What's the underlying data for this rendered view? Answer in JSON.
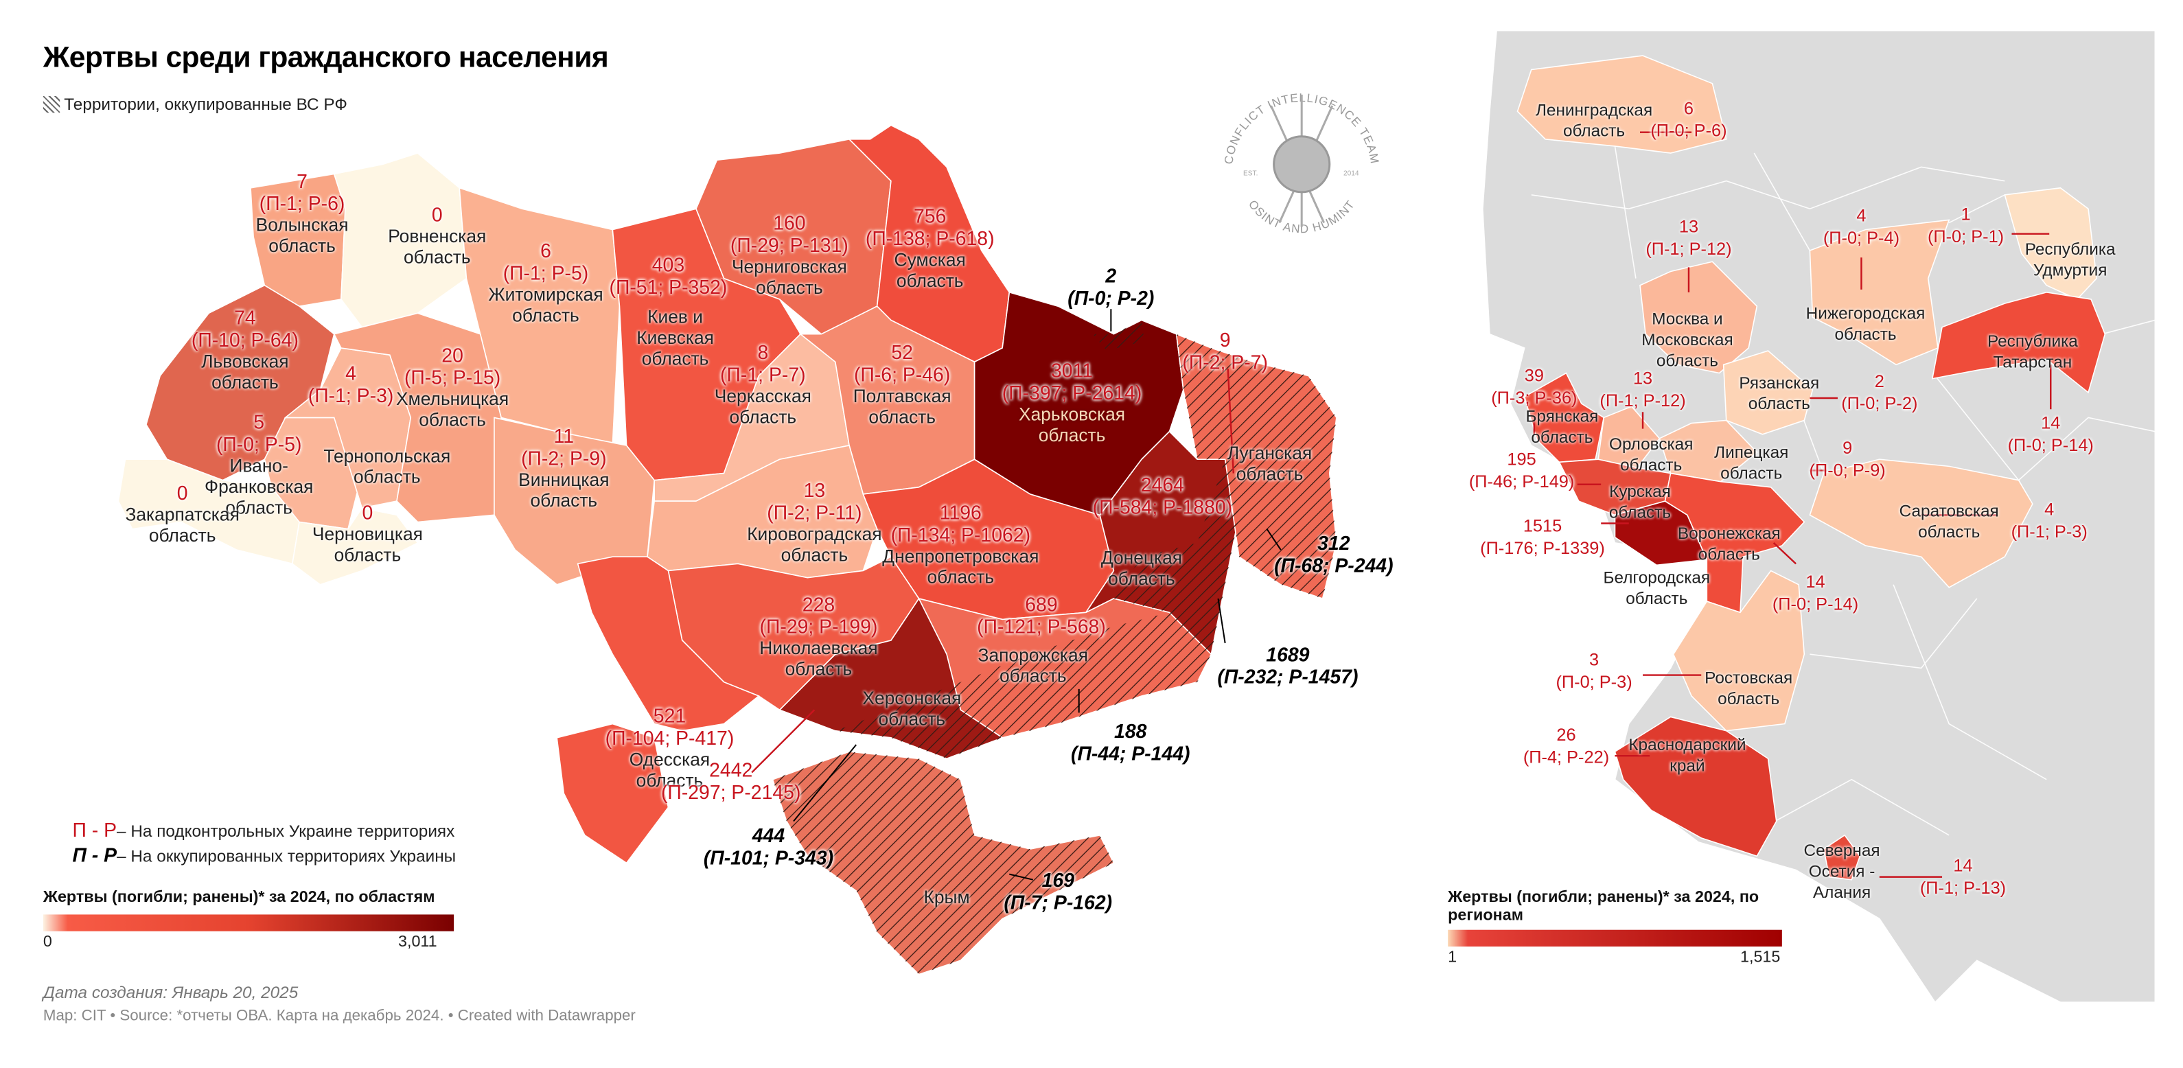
{
  "header": {
    "title": "Жертвы среди гражданского населения",
    "subtitle": "Территории, оккупированные ВС РФ"
  },
  "logo": {
    "top_text": "CONFLICT INTELLIGENCE TEAM",
    "est": "EST.",
    "year": "2014",
    "bottom_text": "OSINT AND HUMINT"
  },
  "colors": {
    "label_controlled": "#c8141e",
    "label_occupied": "#000000",
    "scale_ukraine": [
      "#fdf3e3",
      "#f75b46",
      "#e5432f",
      "#7a0000"
    ],
    "scale_russia": [
      "#fcd9b6",
      "#e8433a",
      "#a00000"
    ],
    "russia_background": "#dcdcdc"
  },
  "legend": {
    "controlled_code": "П - Р",
    "controlled_text": "– На подконтрольных Украине территориях",
    "occupied_code": "П - Р",
    "occupied_text": "– На оккупированных территориях Украины"
  },
  "ukraine_scale": {
    "title": "Жертвы (погибли; ранены)* за 2024, по областям",
    "min": "0",
    "max": "3,011"
  },
  "russia_scale": {
    "title_line1": "Жертвы (погибли; ранены)* за 2024, по",
    "title_line2": "регионам",
    "min": "1",
    "max": "1,515"
  },
  "ukraine": [
    {
      "name": [
        "Волынская",
        "область"
      ],
      "value": "7",
      "breakdown": "(П-1; Р-6)"
    },
    {
      "name": [
        "Ровненская",
        "область"
      ],
      "value": "0",
      "breakdown": ""
    },
    {
      "name": [
        "Житомирская",
        "область"
      ],
      "value": "6",
      "breakdown": "(П-1; Р-5)"
    },
    {
      "name": [
        "Киев и",
        "Киевская",
        "область"
      ],
      "value": "403",
      "breakdown": "(П-51; Р-352)"
    },
    {
      "name": [
        "Черниговская",
        "область"
      ],
      "value": "160",
      "breakdown": "(П-29; Р-131)"
    },
    {
      "name": [
        "Сумская",
        "область"
      ],
      "value": "756",
      "breakdown": "(П-138; Р-618)"
    },
    {
      "name": [
        "Львовская",
        "область"
      ],
      "value": "74",
      "breakdown": "(П-10; Р-64)"
    },
    {
      "name": [
        "Тернопольская",
        "область"
      ],
      "value": "4",
      "breakdown": "(П-1; Р-3)"
    },
    {
      "name": [
        "Хмельницкая",
        "область"
      ],
      "value": "20",
      "breakdown": "(П-5; Р-15)"
    },
    {
      "name": [
        "Ивано-",
        "Франковская",
        "область"
      ],
      "value": "5",
      "breakdown": "(П-0; Р-5)"
    },
    {
      "name": [
        "Закарпатская",
        "область"
      ],
      "value": "0",
      "breakdown": ""
    },
    {
      "name": [
        "Черновицкая",
        "область"
      ],
      "value": "0",
      "breakdown": ""
    },
    {
      "name": [
        "Винницкая",
        "область"
      ],
      "value": "11",
      "breakdown": "(П-2; Р-9)"
    },
    {
      "name": [
        "Черкасская",
        "область"
      ],
      "value": "8",
      "breakdown": "(П-1; Р-7)"
    },
    {
      "name": [
        "Полтавская",
        "область"
      ],
      "value": "52",
      "breakdown": "(П-6; Р-46)"
    },
    {
      "name": [
        "Харьковская",
        "область"
      ],
      "value": "3011",
      "breakdown": "(П-397; Р-2614)"
    },
    {
      "name": [
        "Кировоградская",
        "область"
      ],
      "value": "13",
      "breakdown": "(П-2; Р-11)"
    },
    {
      "name": [
        "Днепропетровская",
        "область"
      ],
      "value": "1196",
      "breakdown": "(П-134; Р-1062)"
    },
    {
      "name": [
        "Донецкая",
        "область"
      ],
      "value": "2464",
      "breakdown": "(П-584; Р-1880)"
    },
    {
      "name": [
        "Запорожская",
        "область"
      ],
      "value": "689",
      "breakdown": "(П-121; Р-568)"
    },
    {
      "name": [
        "Николаевская",
        "область"
      ],
      "value": "228",
      "breakdown": "(П-29; Р-199)"
    },
    {
      "name": [
        "Одесская",
        "область"
      ],
      "value": "521",
      "breakdown": "(П-104; Р-417)"
    },
    {
      "name": [
        "Херсонская",
        "область"
      ],
      "value": "2442",
      "breakdown": "(П-297; Р-2145)"
    },
    {
      "name": [
        "Луганская",
        "область"
      ],
      "value": "9",
      "breakdown": "(П-2; Р-7)"
    },
    {
      "name": [
        "Крым"
      ],
      "value": "",
      "breakdown": ""
    }
  ],
  "occupied": [
    {
      "region": "Харьковская область",
      "value": "2",
      "breakdown": "(П-0; Р-2)"
    },
    {
      "region": "Луганская область",
      "value": "312",
      "breakdown": "(П-68; Р-244)"
    },
    {
      "region": "Донецкая область",
      "value": "1689",
      "breakdown": "(П-232; Р-1457)"
    },
    {
      "region": "Запорожская область",
      "value": "188",
      "breakdown": "(П-44; Р-144)"
    },
    {
      "region": "Херсонская область",
      "value": "444",
      "breakdown": "(П-101; Р-343)"
    },
    {
      "region": "Крым",
      "value": "169",
      "breakdown": "(П-7; Р-162)"
    }
  ],
  "russia": [
    {
      "name": [
        "Ленинградская",
        "область"
      ],
      "value": "6",
      "breakdown": "(П-0; Р-6)"
    },
    {
      "name": [
        "Москва и",
        "Московская",
        "область"
      ],
      "value": "13",
      "breakdown": "(П-1; Р-12)"
    },
    {
      "name": [
        "Нижегородская",
        "область"
      ],
      "value": "4",
      "breakdown": "(П-0; Р-4)"
    },
    {
      "name": [
        "Республика",
        "Удмуртия"
      ],
      "value": "1",
      "breakdown": "(П-0; Р-1)"
    },
    {
      "name": [
        "Республика",
        "Татарстан"
      ],
      "value": "14",
      "breakdown": "(П-0; Р-14)"
    },
    {
      "name": [
        "Брянская",
        "область"
      ],
      "value": "39",
      "breakdown": "(П-3; Р-36)"
    },
    {
      "name": [
        "Орловская",
        "область"
      ],
      "value": "13",
      "breakdown": "(П-1; Р-12)"
    },
    {
      "name": [
        "Рязанская",
        "область"
      ],
      "value": "2",
      "breakdown": "(П-0; Р-2)"
    },
    {
      "name": [
        "Липецкая",
        "область"
      ],
      "value": "9",
      "breakdown": "(П-0; Р-9)"
    },
    {
      "name": [
        "Курская",
        "область"
      ],
      "value": "195",
      "breakdown": "(П-46; Р-149)"
    },
    {
      "name": [
        "Белгородская",
        "область"
      ],
      "value": "1515",
      "breakdown": "(П-176; Р-1339)"
    },
    {
      "name": [
        "Воронежская",
        "область"
      ],
      "value": "14",
      "breakdown": "(П-0; Р-14)"
    },
    {
      "name": [
        "Саратовская",
        "область"
      ],
      "value": "4",
      "breakdown": "(П-1; Р-3)"
    },
    {
      "name": [
        "Ростовская",
        "область"
      ],
      "value": "3",
      "breakdown": "(П-0; Р-3)"
    },
    {
      "name": [
        "Краснодарский",
        "край"
      ],
      "value": "26",
      "breakdown": "(П-4; Р-22)"
    },
    {
      "name": [
        "Северная",
        "Осетия -",
        "Алания"
      ],
      "value": "14",
      "breakdown": "(П-1; Р-13)"
    }
  ],
  "footer": {
    "date": "Дата создания: Январь 20, 2025",
    "source": "Map: CIT • Source: *отчеты ОВА. Карта на декабрь 2024. • Created with Datawrapper"
  }
}
